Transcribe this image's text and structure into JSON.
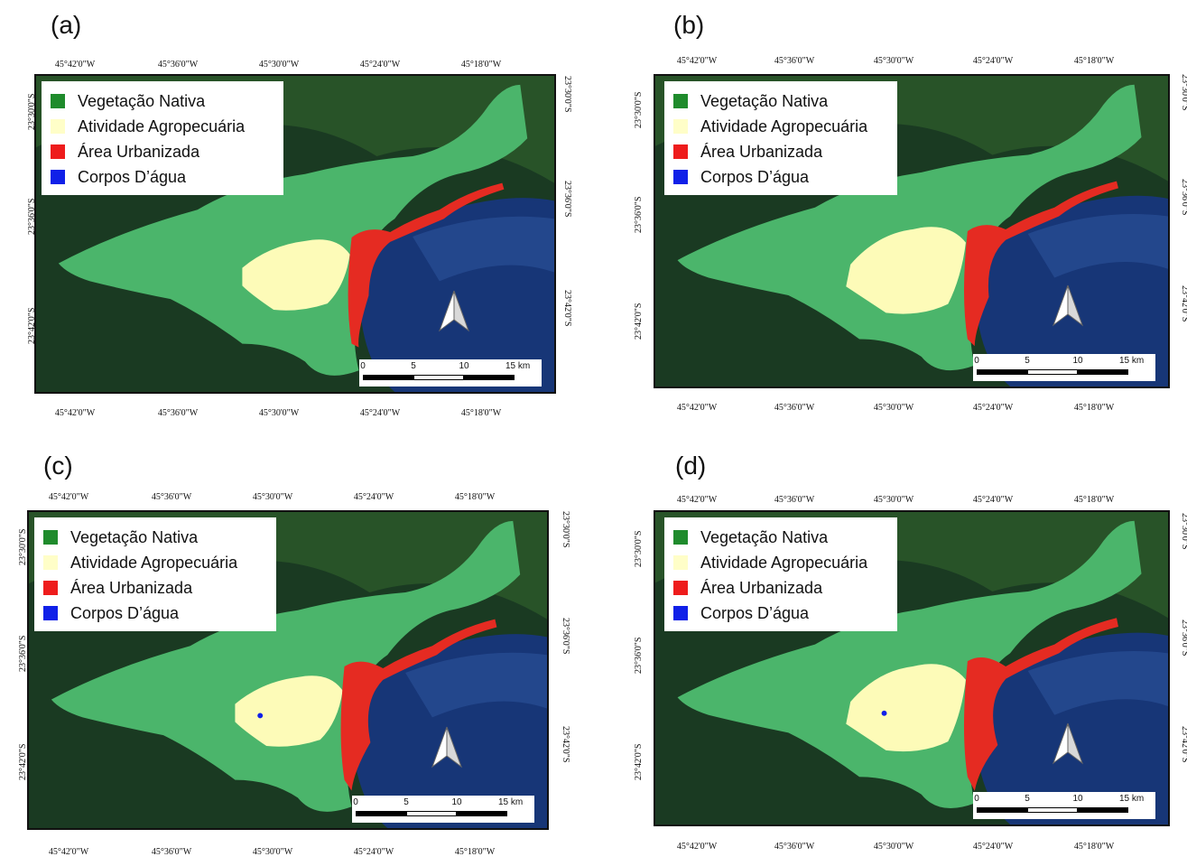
{
  "colors": {
    "vegetacao": "#1f8b2c",
    "agro": "#fffec8",
    "urbana": "#ee1c1c",
    "agua": "#1020e8",
    "mapa_vegetacao": "#4bb56b",
    "mapa_agro": "#fdfbb8",
    "mapa_urbana": "#e52b22",
    "mar": "#173677"
  },
  "legend": {
    "items": [
      {
        "label": "Vegetação Nativa",
        "color": "#1f8b2c"
      },
      {
        "label": "Atividade Agropecuária",
        "color": "#fffec8"
      },
      {
        "label": "Área Urbanizada",
        "color": "#ee1c1c"
      },
      {
        "label": "Corpos D’água",
        "color": "#1020e8"
      }
    ]
  },
  "lon_labels": [
    "45°42'0\"W",
    "45°36'0\"W",
    "45°30'0\"W",
    "45°24'0\"W",
    "45°18'0\"W"
  ],
  "lat_labels": [
    "23°30'0\"S",
    "23°36'0\"S",
    "23°42'0\"S"
  ],
  "scale": {
    "ticks": [
      "0",
      "5",
      "10",
      "15 km"
    ]
  },
  "north_icon": "north-arrow-icon",
  "panels": [
    {
      "label": "(a)",
      "urban_level": 1,
      "agro_level": 1
    },
    {
      "label": "(b)",
      "urban_level": 2,
      "agro_level": 2
    },
    {
      "label": "(c)",
      "urban_level": 3,
      "agro_level": 1
    },
    {
      "label": "(d)",
      "urban_level": 4,
      "agro_level": 2
    }
  ]
}
